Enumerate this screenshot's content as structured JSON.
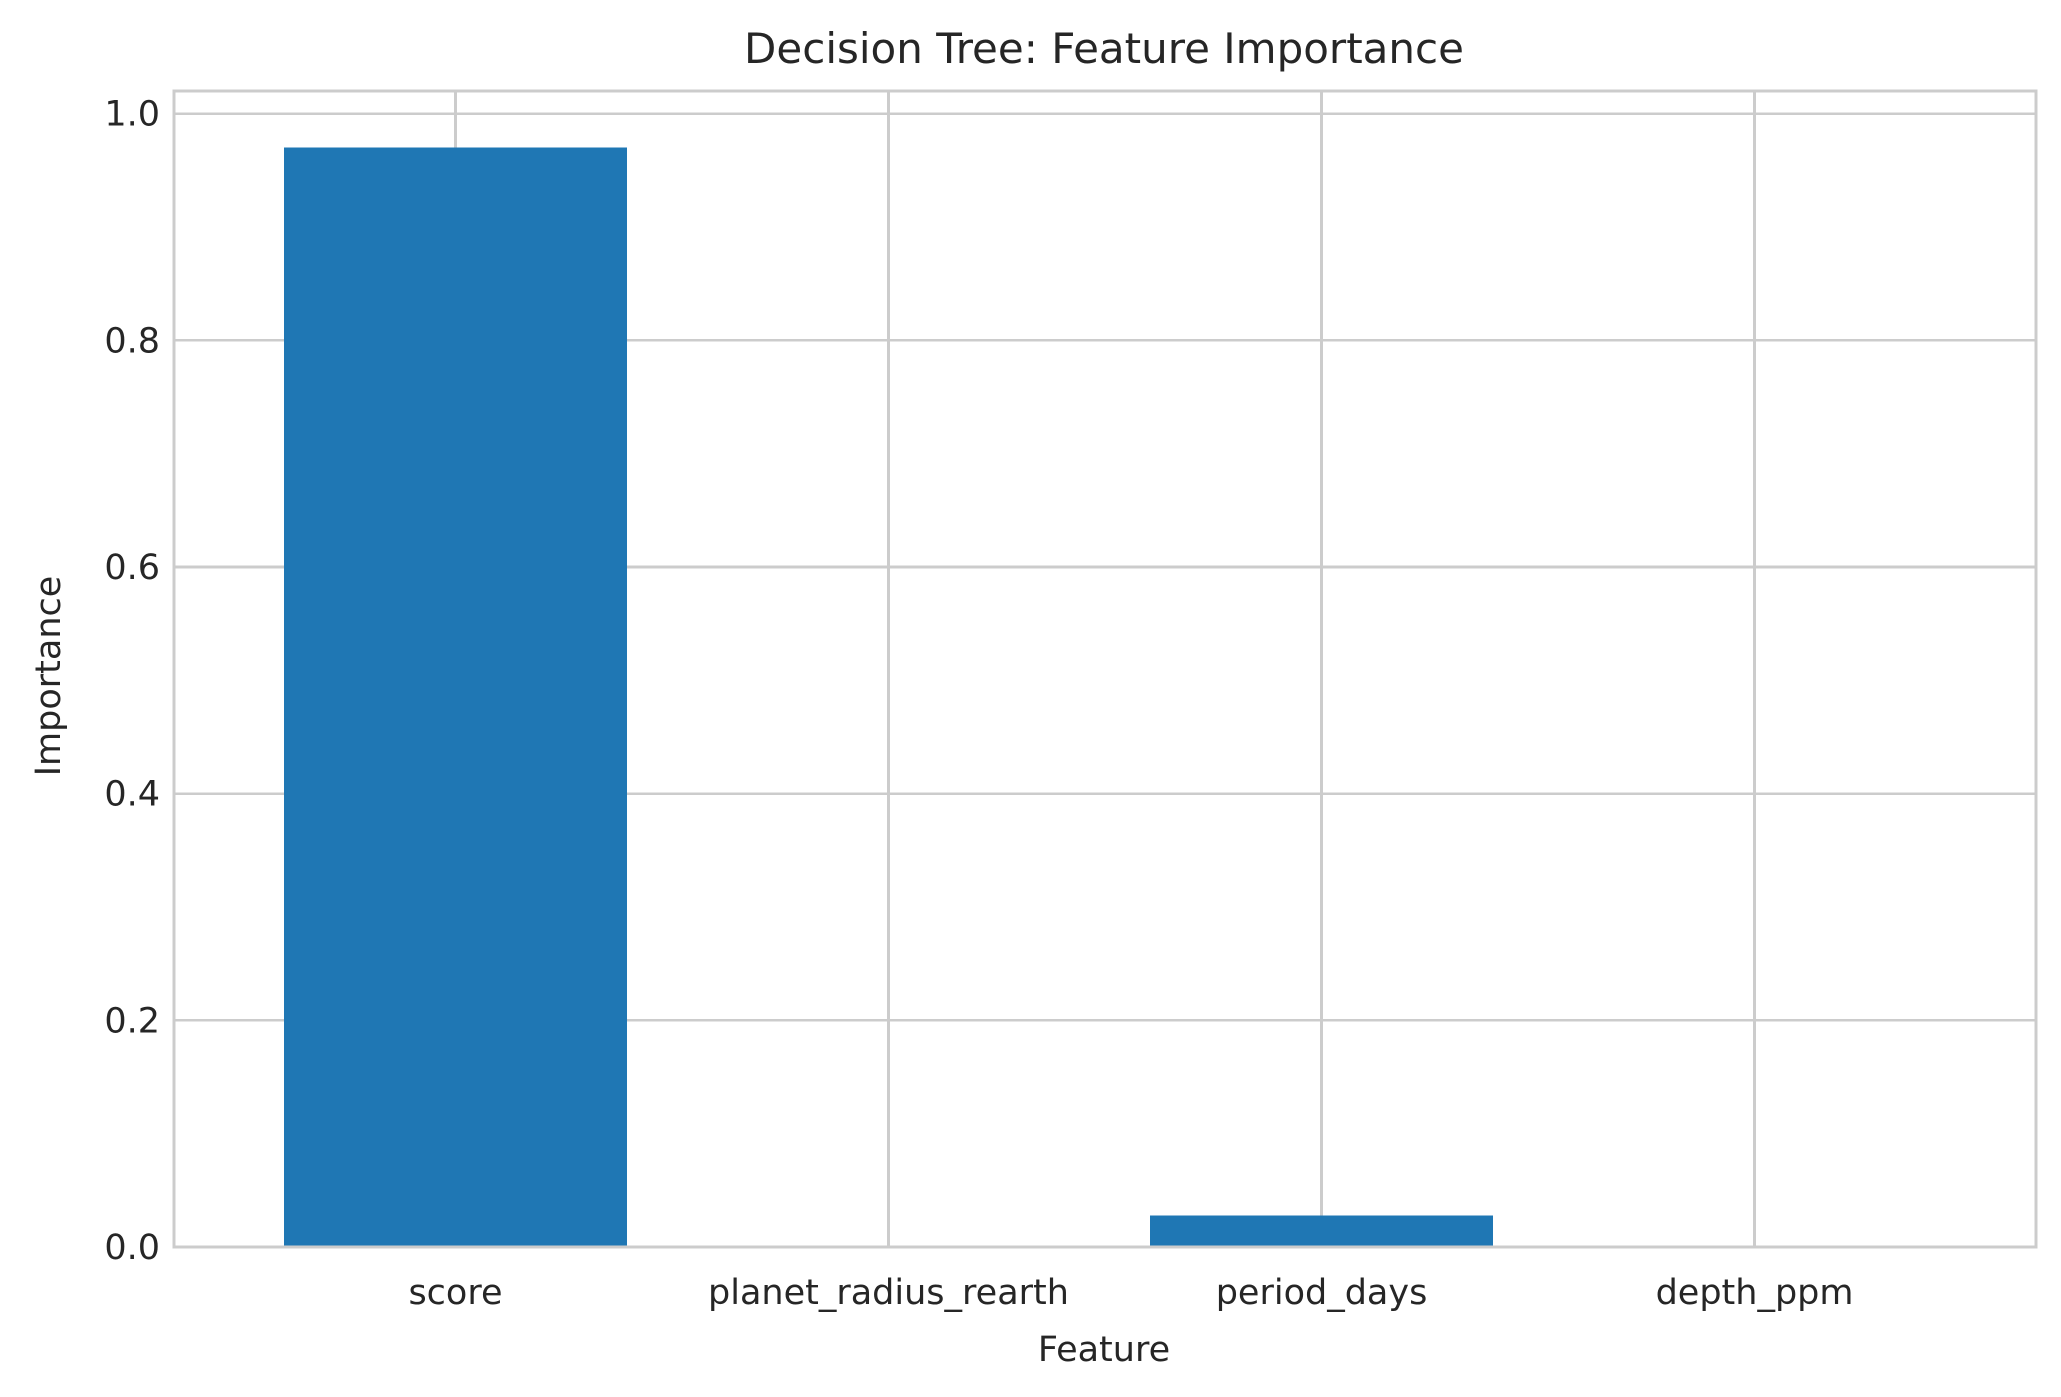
{
  "chart_data": {
    "type": "bar",
    "title": "Decision Tree: Feature Importance",
    "xlabel": "Feature",
    "ylabel": "Importance",
    "categories": [
      "score",
      "planet_radius_rearth",
      "period_days",
      "depth_ppm"
    ],
    "values": [
      0.97,
      0.0,
      0.028,
      0.0
    ],
    "ylim": [
      0,
      1.02
    ],
    "yticks": [
      0.0,
      0.2,
      0.4,
      0.6,
      0.8,
      1.0
    ],
    "ytick_labels": [
      "0.0",
      "0.2",
      "0.4",
      "0.6",
      "0.8",
      "1.0"
    ],
    "grid": true,
    "bar_color": "#1f77b4",
    "grid_color": "#cccccc",
    "text_color": "#262626"
  }
}
